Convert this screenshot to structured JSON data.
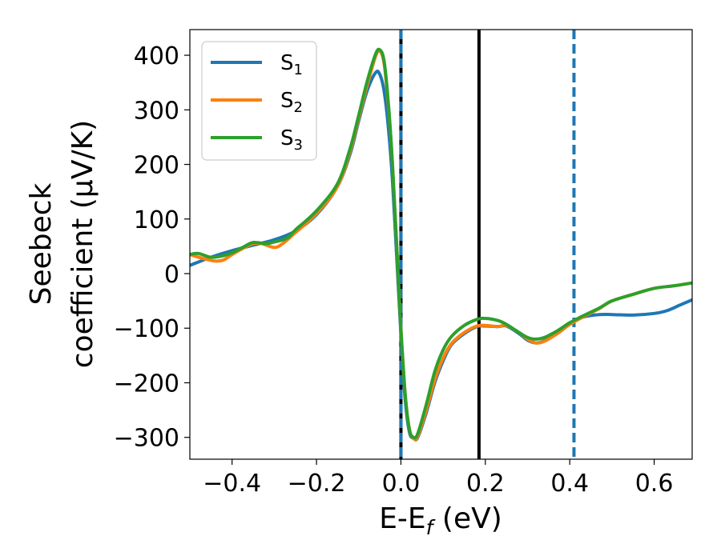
{
  "chart_data": {
    "type": "line",
    "xlabel": "E-E",
    "xlabel_sub": "f",
    "xlabel_unit": " (eV)",
    "ylabel_line1": "Seebeck",
    "ylabel_line2": "coefficient (μV/K)",
    "xlim": [
      -0.5,
      0.69
    ],
    "ylim": [
      -340,
      447
    ],
    "xticks": [
      -0.4,
      -0.2,
      0.0,
      0.2,
      0.4,
      0.6
    ],
    "xtick_labels": [
      "−0.4",
      "−0.2",
      "0.0",
      "0.2",
      "0.4",
      "0.6"
    ],
    "yticks": [
      -300,
      -200,
      -100,
      0,
      100,
      200,
      300,
      400
    ],
    "ytick_labels": [
      "−300",
      "−200",
      "−100",
      "0",
      "100",
      "200",
      "300",
      "400"
    ],
    "legend_position": "top-left",
    "grid": false,
    "series": [
      {
        "name": "S",
        "sub": "1",
        "color": "#1f77b4",
        "points": [
          [
            -0.5,
            15
          ],
          [
            -0.45,
            30
          ],
          [
            -0.4,
            42
          ],
          [
            -0.35,
            52
          ],
          [
            -0.3,
            62
          ],
          [
            -0.25,
            78
          ],
          [
            -0.2,
            108
          ],
          [
            -0.15,
            160
          ],
          [
            -0.12,
            220
          ],
          [
            -0.1,
            280
          ],
          [
            -0.08,
            335
          ],
          [
            -0.06,
            368
          ],
          [
            -0.05,
            365
          ],
          [
            -0.04,
            335
          ],
          [
            -0.03,
            270
          ],
          [
            -0.02,
            170
          ],
          [
            -0.01,
            30
          ],
          [
            0.0,
            -110
          ],
          [
            0.01,
            -230
          ],
          [
            0.02,
            -290
          ],
          [
            0.03,
            -302
          ],
          [
            0.04,
            -300
          ],
          [
            0.06,
            -255
          ],
          [
            0.08,
            -200
          ],
          [
            0.1,
            -160
          ],
          [
            0.12,
            -130
          ],
          [
            0.15,
            -110
          ],
          [
            0.18,
            -97
          ],
          [
            0.2,
            -96
          ],
          [
            0.23,
            -97
          ],
          [
            0.25,
            -96
          ],
          [
            0.28,
            -110
          ],
          [
            0.3,
            -122
          ],
          [
            0.32,
            -127
          ],
          [
            0.34,
            -123
          ],
          [
            0.37,
            -110
          ],
          [
            0.4,
            -93
          ],
          [
            0.43,
            -80
          ],
          [
            0.47,
            -75
          ],
          [
            0.5,
            -75
          ],
          [
            0.55,
            -76
          ],
          [
            0.6,
            -73
          ],
          [
            0.63,
            -68
          ],
          [
            0.66,
            -58
          ],
          [
            0.69,
            -48
          ]
        ]
      },
      {
        "name": "S",
        "sub": "2",
        "color": "#ff7f0e",
        "points": [
          [
            -0.5,
            35
          ],
          [
            -0.47,
            28
          ],
          [
            -0.44,
            23
          ],
          [
            -0.42,
            25
          ],
          [
            -0.4,
            35
          ],
          [
            -0.37,
            48
          ],
          [
            -0.35,
            55
          ],
          [
            -0.33,
            55
          ],
          [
            -0.3,
            48
          ],
          [
            -0.28,
            55
          ],
          [
            -0.25,
            75
          ],
          [
            -0.2,
            110
          ],
          [
            -0.15,
            160
          ],
          [
            -0.12,
            225
          ],
          [
            -0.1,
            285
          ],
          [
            -0.08,
            345
          ],
          [
            -0.06,
            398
          ],
          [
            -0.05,
            408
          ],
          [
            -0.04,
            385
          ],
          [
            -0.03,
            310
          ],
          [
            -0.02,
            200
          ],
          [
            -0.01,
            50
          ],
          [
            0.0,
            -100
          ],
          [
            0.01,
            -220
          ],
          [
            0.02,
            -285
          ],
          [
            0.03,
            -302
          ],
          [
            0.04,
            -298
          ],
          [
            0.06,
            -250
          ],
          [
            0.08,
            -195
          ],
          [
            0.1,
            -155
          ],
          [
            0.12,
            -128
          ],
          [
            0.15,
            -108
          ],
          [
            0.18,
            -96
          ],
          [
            0.2,
            -95
          ],
          [
            0.23,
            -97
          ],
          [
            0.25,
            -95
          ],
          [
            0.28,
            -108
          ],
          [
            0.3,
            -120
          ],
          [
            0.32,
            -127
          ],
          [
            0.34,
            -124
          ],
          [
            0.37,
            -110
          ],
          [
            0.4,
            -93
          ],
          [
            0.43,
            -80
          ],
          [
            0.47,
            -64
          ],
          [
            0.5,
            -50
          ],
          [
            0.55,
            -38
          ],
          [
            0.6,
            -27
          ],
          [
            0.65,
            -22
          ],
          [
            0.69,
            -17
          ]
        ]
      },
      {
        "name": "S",
        "sub": "3",
        "color": "#2ca02c",
        "points": [
          [
            -0.5,
            35
          ],
          [
            -0.48,
            37
          ],
          [
            -0.45,
            30
          ],
          [
            -0.42,
            33
          ],
          [
            -0.4,
            38
          ],
          [
            -0.37,
            50
          ],
          [
            -0.35,
            57
          ],
          [
            -0.32,
            55
          ],
          [
            -0.3,
            58
          ],
          [
            -0.27,
            65
          ],
          [
            -0.25,
            80
          ],
          [
            -0.2,
            115
          ],
          [
            -0.15,
            165
          ],
          [
            -0.12,
            230
          ],
          [
            -0.1,
            290
          ],
          [
            -0.08,
            352
          ],
          [
            -0.06,
            402
          ],
          [
            -0.05,
            410
          ],
          [
            -0.04,
            390
          ],
          [
            -0.03,
            315
          ],
          [
            -0.02,
            200
          ],
          [
            -0.01,
            50
          ],
          [
            0.0,
            -100
          ],
          [
            0.01,
            -220
          ],
          [
            0.02,
            -285
          ],
          [
            0.03,
            -300
          ],
          [
            0.04,
            -293
          ],
          [
            0.06,
            -240
          ],
          [
            0.08,
            -180
          ],
          [
            0.1,
            -140
          ],
          [
            0.12,
            -115
          ],
          [
            0.15,
            -95
          ],
          [
            0.18,
            -84
          ],
          [
            0.2,
            -82
          ],
          [
            0.23,
            -86
          ],
          [
            0.25,
            -93
          ],
          [
            0.28,
            -108
          ],
          [
            0.3,
            -117
          ],
          [
            0.32,
            -120
          ],
          [
            0.34,
            -117
          ],
          [
            0.37,
            -105
          ],
          [
            0.4,
            -90
          ],
          [
            0.43,
            -78
          ],
          [
            0.47,
            -63
          ],
          [
            0.5,
            -50
          ],
          [
            0.55,
            -38
          ],
          [
            0.6,
            -27
          ],
          [
            0.65,
            -22
          ],
          [
            0.69,
            -17
          ]
        ]
      }
    ],
    "vertical_lines": [
      {
        "x": 0.0,
        "color": "#000000",
        "style": "solid"
      },
      {
        "x": 0.0,
        "color": "#1f77b4",
        "style": "dashed"
      },
      {
        "x": 0.185,
        "color": "#000000",
        "style": "solid"
      },
      {
        "x": 0.41,
        "color": "#1f77b4",
        "style": "dashed"
      }
    ]
  }
}
